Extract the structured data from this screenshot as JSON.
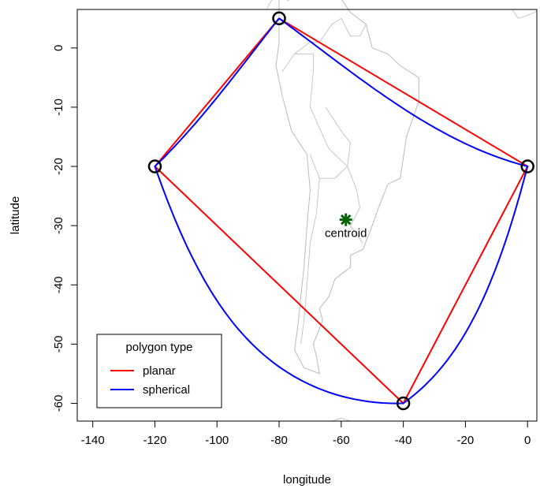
{
  "chart_data": {
    "type": "scatter",
    "title": "",
    "xlabel": "longitude",
    "ylabel": "latitude",
    "xlim": [
      -145,
      3
    ],
    "ylim": [
      -63,
      6.5
    ],
    "x_ticks": [
      -140,
      -120,
      -100,
      -80,
      -60,
      -40,
      -20,
      0
    ],
    "y_ticks": [
      0,
      -10,
      -20,
      -30,
      -40,
      -50,
      -60
    ],
    "x_tick_labels": [
      "-140",
      "-120",
      "-100",
      "-80",
      "-60",
      "-40",
      "-20",
      "0"
    ],
    "y_tick_labels": [
      "0",
      "-10",
      "-20",
      "-30",
      "-40",
      "-50",
      "-60"
    ],
    "grid": false,
    "vertices": [
      {
        "x": -80,
        "y": 5
      },
      {
        "x": 0,
        "y": -20
      },
      {
        "x": -40,
        "y": -60
      },
      {
        "x": -120,
        "y": -20
      }
    ],
    "series": [
      {
        "name": "planar",
        "color": "#ff0000",
        "interpolation": "straight"
      },
      {
        "name": "spherical",
        "color": "#0000ff",
        "interpolation": "great-circle"
      }
    ],
    "centroid": {
      "x": -58.5,
      "y": -29,
      "label": "centroid",
      "color": "#006400",
      "marker": "asterisk"
    },
    "legend": {
      "title": "polygon type",
      "placement": "bottom-left",
      "entries": [
        "planar",
        "spherical"
      ]
    },
    "basemap": {
      "region": "South America",
      "color": "#bbbbbb"
    }
  }
}
